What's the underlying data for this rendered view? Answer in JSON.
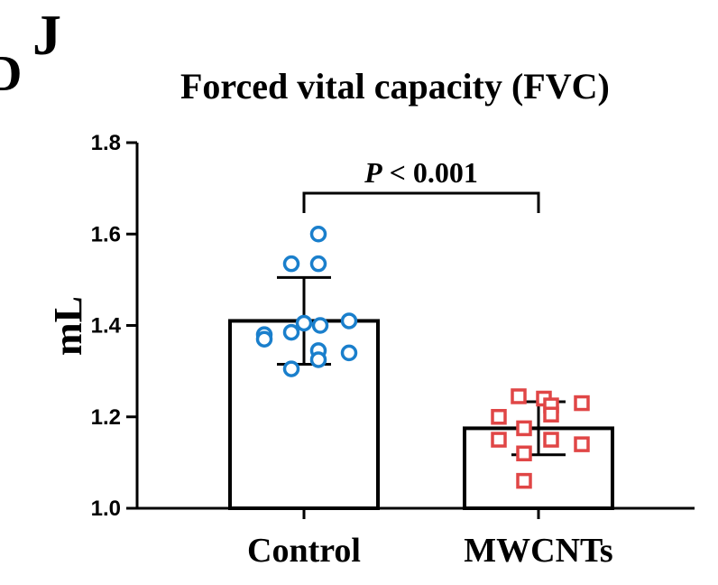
{
  "panel_letter": "J",
  "partial_letter": "D",
  "chart_data": {
    "type": "bar",
    "title": "Forced vital capacity (FVC)",
    "xlabel": "",
    "ylabel": "mL",
    "ylim": [
      1.0,
      1.8
    ],
    "yticks": [
      1.0,
      1.2,
      1.4,
      1.6,
      1.8
    ],
    "ytick_labels": [
      "1.0",
      "1.2",
      "1.4",
      "1.6",
      "1.8"
    ],
    "categories": [
      "Control",
      "MWCNTs"
    ],
    "values": [
      1.41,
      1.175
    ],
    "error": [
      0.095,
      0.058
    ],
    "points": [
      [
        1.6,
        1.535,
        1.535,
        1.41,
        1.4,
        1.405,
        1.385,
        1.38,
        1.37,
        1.345,
        1.34,
        1.325,
        1.305
      ],
      [
        1.245,
        1.24,
        1.23,
        1.225,
        1.2,
        1.205,
        1.175,
        1.15,
        1.15,
        1.14,
        1.12,
        1.06
      ]
    ],
    "point_colors": [
      "#1a7fcc",
      "#e04646"
    ],
    "point_markers": [
      "circle",
      "square"
    ],
    "annotation": {
      "p_italic": "P",
      "p_rest": " < 0.001"
    },
    "grid": false,
    "legend": "none"
  }
}
